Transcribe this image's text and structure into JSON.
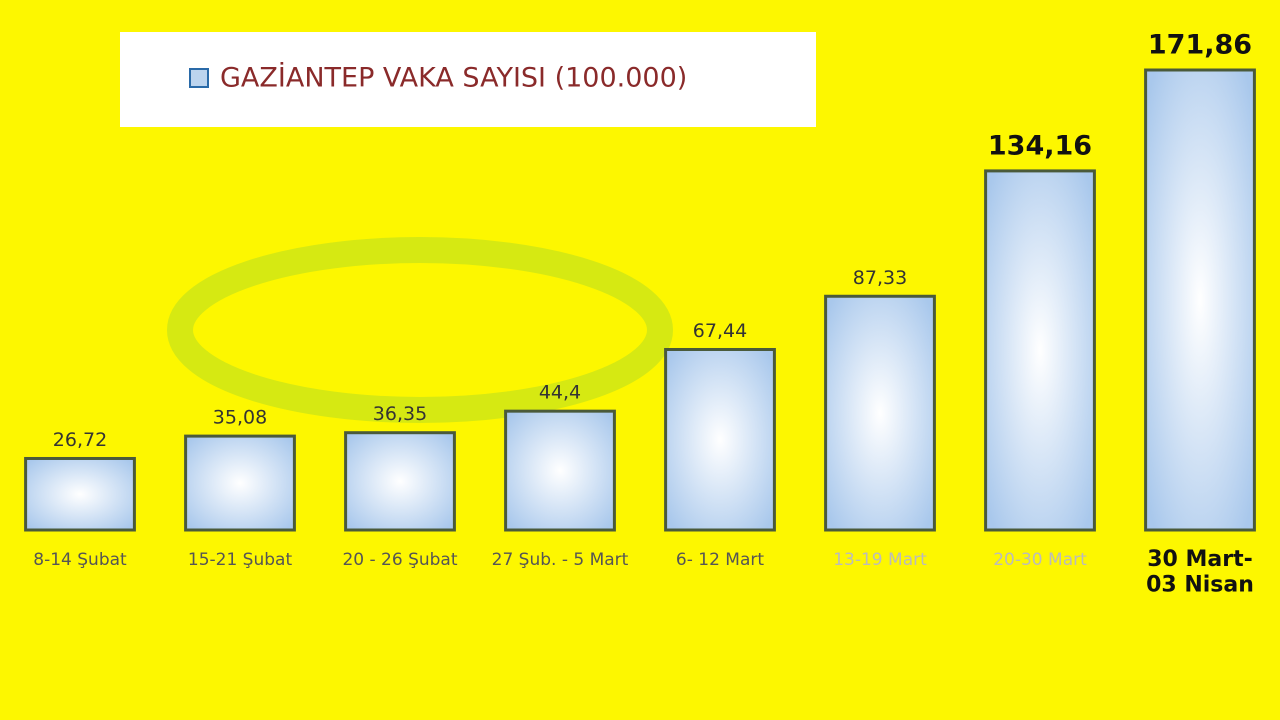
{
  "chart_data": {
    "type": "bar",
    "categories": [
      "8-14 Şubat",
      "15-21 Şubat",
      "20 - 26 Şubat",
      "27 Şub. - 5 Mart",
      "6- 12 Mart",
      "13-19 Mart",
      "20-30 Mart",
      "30 Mart-\n03 Nisan"
    ],
    "series": [
      {
        "name": "GAZİANTEP VAKA SAYISI (100.000)",
        "color": "#bcd4ee",
        "values": [
          26.72,
          35.08,
          36.35,
          44.4,
          67.44,
          87.33,
          134.16,
          171.86
        ],
        "value_labels": [
          "26,72",
          "35,08",
          "36,35",
          "44,4",
          "67,44",
          "87,33",
          "134,16",
          "171,86"
        ]
      }
    ]
  }
}
